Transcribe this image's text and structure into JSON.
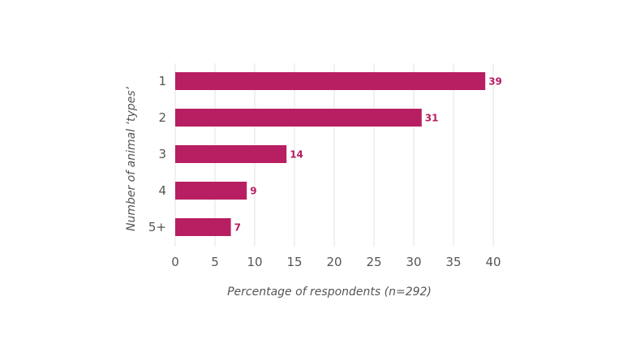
{
  "chart_data": {
    "type": "bar",
    "orientation": "horizontal",
    "title": "",
    "categories": [
      "1",
      "2",
      "3",
      "4",
      "5+"
    ],
    "values": [
      39,
      31,
      14,
      9,
      7
    ],
    "xlabel": "Percentage of respondents (n=292)",
    "ylabel": "Number of animal ‘types’",
    "xlim": [
      0,
      40
    ],
    "xticks": [
      0,
      5,
      10,
      15,
      20,
      25,
      30,
      35,
      40
    ],
    "grid": "vertical",
    "legend": "none",
    "bar_color": "#b81e62",
    "data_labels": true
  }
}
